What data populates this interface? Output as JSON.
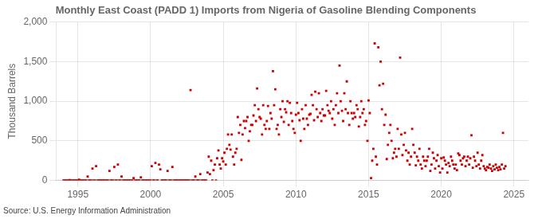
{
  "chart_data": {
    "type": "scatter",
    "title": "Monthly East Coast (PADD 1) Imports from Nigeria of Gasoline Blending Components",
    "ylabel": "Thousand Barrels",
    "source": "Source: U.S. Energy Information Administration",
    "color": "#cc0000",
    "marker": "square",
    "grid": true,
    "xlim": [
      1993.5,
      2026.0
    ],
    "ylim": [
      0,
      2000
    ],
    "xticks": [
      1995,
      2000,
      2005,
      2010,
      2015,
      2020,
      2025
    ],
    "yticks": [
      0,
      500,
      {
        "value": 1000,
        "label": "1,000"
      },
      {
        "value": 1500,
        "label": "1,500"
      },
      {
        "value": 2000,
        "label": "2,000"
      }
    ],
    "x": [
      1994.0,
      1994.08,
      1994.17,
      1994.25,
      1994.33,
      1994.42,
      1994.5,
      1994.58,
      1994.67,
      1994.75,
      1994.83,
      1994.92,
      1995.0,
      1995.08,
      1995.17,
      1995.25,
      1995.33,
      1995.42,
      1995.5,
      1995.58,
      1995.67,
      1995.75,
      1995.83,
      1995.92,
      1996.0,
      1996.08,
      1996.17,
      1996.25,
      1996.33,
      1996.42,
      1996.5,
      1996.58,
      1996.67,
      1996.75,
      1996.83,
      1996.92,
      1997.0,
      1997.08,
      1997.17,
      1997.25,
      1997.33,
      1997.42,
      1997.5,
      1997.58,
      1997.67,
      1997.75,
      1997.83,
      1997.92,
      1998.0,
      1998.08,
      1998.17,
      1998.25,
      1998.33,
      1998.42,
      1998.5,
      1998.58,
      1998.67,
      1998.75,
      1998.83,
      1998.92,
      1999.0,
      1999.08,
      1999.17,
      1999.25,
      1999.33,
      1999.42,
      1999.5,
      1999.58,
      1999.67,
      1999.75,
      1999.83,
      1999.92,
      2000.0,
      2000.08,
      2000.17,
      2000.25,
      2000.33,
      2000.42,
      2000.5,
      2000.58,
      2000.67,
      2000.75,
      2000.83,
      2000.92,
      2001.0,
      2001.08,
      2001.17,
      2001.25,
      2001.33,
      2001.42,
      2001.5,
      2001.58,
      2001.67,
      2001.75,
      2001.83,
      2001.92,
      2002.0,
      2002.08,
      2002.17,
      2002.25,
      2002.33,
      2002.42,
      2002.5,
      2002.58,
      2002.67,
      2002.75,
      2002.83,
      2002.92,
      2003.0,
      2003.08,
      2003.17,
      2003.25,
      2003.33,
      2003.42,
      2003.5,
      2003.58,
      2003.67,
      2003.75,
      2003.83,
      2003.92,
      2004.0,
      2004.08,
      2004.17,
      2004.25,
      2004.33,
      2004.42,
      2004.5,
      2004.58,
      2004.67,
      2004.75,
      2004.83,
      2004.92,
      2005.0,
      2005.08,
      2005.17,
      2005.25,
      2005.33,
      2005.42,
      2005.5,
      2005.58,
      2005.67,
      2005.75,
      2005.83,
      2005.92,
      2006.0,
      2006.08,
      2006.17,
      2006.25,
      2006.33,
      2006.42,
      2006.5,
      2006.58,
      2006.67,
      2006.75,
      2006.83,
      2006.92,
      2007.0,
      2007.08,
      2007.17,
      2007.25,
      2007.33,
      2007.42,
      2007.5,
      2007.58,
      2007.67,
      2007.75,
      2007.83,
      2007.92,
      2008.0,
      2008.08,
      2008.17,
      2008.25,
      2008.33,
      2008.42,
      2008.5,
      2008.58,
      2008.67,
      2008.75,
      2008.83,
      2008.92,
      2009.0,
      2009.08,
      2009.17,
      2009.25,
      2009.33,
      2009.42,
      2009.5,
      2009.58,
      2009.67,
      2009.75,
      2009.83,
      2009.92,
      2010.0,
      2010.08,
      2010.17,
      2010.25,
      2010.33,
      2010.42,
      2010.5,
      2010.58,
      2010.67,
      2010.75,
      2010.83,
      2010.92,
      2011.0,
      2011.08,
      2011.17,
      2011.25,
      2011.33,
      2011.42,
      2011.5,
      2011.58,
      2011.67,
      2011.75,
      2011.83,
      2011.92,
      2012.0,
      2012.08,
      2012.17,
      2012.25,
      2012.33,
      2012.42,
      2012.5,
      2012.58,
      2012.67,
      2012.75,
      2012.83,
      2012.92,
      2013.0,
      2013.08,
      2013.17,
      2013.25,
      2013.33,
      2013.42,
      2013.5,
      2013.58,
      2013.67,
      2013.75,
      2013.83,
      2013.92,
      2014.0,
      2014.08,
      2014.17,
      2014.25,
      2014.33,
      2014.42,
      2014.5,
      2014.58,
      2014.67,
      2014.75,
      2014.83,
      2014.92,
      2015.0,
      2015.08,
      2015.17,
      2015.25,
      2015.33,
      2015.42,
      2015.5,
      2015.58,
      2015.67,
      2015.75,
      2015.83,
      2015.92,
      2016.0,
      2016.08,
      2016.17,
      2016.25,
      2016.33,
      2016.42,
      2016.5,
      2016.58,
      2016.67,
      2016.75,
      2016.83,
      2016.92,
      2017.0,
      2017.08,
      2017.17,
      2017.25,
      2017.33,
      2017.42,
      2017.5,
      2017.58,
      2017.67,
      2017.75,
      2017.83,
      2017.92,
      2018.0,
      2018.08,
      2018.17,
      2018.25,
      2018.33,
      2018.42,
      2018.5,
      2018.58,
      2018.67,
      2018.75,
      2018.83,
      2018.92,
      2019.0,
      2019.08,
      2019.17,
      2019.25,
      2019.33,
      2019.42,
      2019.5,
      2019.58,
      2019.67,
      2019.75,
      2019.83,
      2019.92,
      2020.0,
      2020.08,
      2020.17,
      2020.25,
      2020.33,
      2020.42,
      2020.5,
      2020.58,
      2020.67,
      2020.75,
      2020.83,
      2020.92,
      2021.0,
      2021.08,
      2021.17,
      2021.25,
      2021.33,
      2021.42,
      2021.5,
      2021.58,
      2021.67,
      2021.75,
      2021.83,
      2021.92,
      2022.0,
      2022.08,
      2022.17,
      2022.25,
      2022.33,
      2022.42,
      2022.5,
      2022.58,
      2022.67,
      2022.75,
      2022.83,
      2022.92,
      2023.0,
      2023.08,
      2023.17,
      2023.25,
      2023.33,
      2023.42,
      2023.5,
      2023.58,
      2023.67,
      2023.75,
      2023.83,
      2023.92,
      2024.0,
      2024.08,
      2024.17,
      2024.25,
      2024.33,
      2024.42
    ],
    "values": [
      0,
      0,
      0,
      0,
      0,
      5,
      0,
      0,
      0,
      0,
      0,
      0,
      0,
      10,
      0,
      0,
      0,
      0,
      0,
      0,
      50,
      0,
      0,
      0,
      150,
      0,
      0,
      180,
      0,
      0,
      0,
      0,
      0,
      0,
      0,
      0,
      0,
      0,
      120,
      0,
      0,
      0,
      170,
      0,
      0,
      200,
      0,
      0,
      50,
      0,
      0,
      0,
      0,
      0,
      0,
      0,
      0,
      0,
      30,
      0,
      0,
      0,
      0,
      0,
      40,
      0,
      0,
      0,
      0,
      0,
      0,
      0,
      0,
      180,
      0,
      0,
      220,
      0,
      0,
      200,
      140,
      0,
      0,
      0,
      0,
      0,
      120,
      0,
      0,
      0,
      170,
      0,
      0,
      0,
      0,
      0,
      0,
      0,
      0,
      0,
      0,
      0,
      0,
      0,
      0,
      1140,
      0,
      0,
      0,
      50,
      0,
      0,
      0,
      80,
      0,
      0,
      0,
      0,
      0,
      100,
      300,
      80,
      250,
      0,
      130,
      200,
      0,
      280,
      380,
      200,
      150,
      280,
      240,
      350,
      200,
      400,
      580,
      450,
      390,
      580,
      300,
      200,
      350,
      400,
      800,
      600,
      700,
      260,
      580,
      750,
      660,
      750,
      800,
      500,
      620,
      700,
      700,
      820,
      950,
      750,
      1160,
      900,
      800,
      780,
      580,
      950,
      700,
      650,
      750,
      940,
      650,
      850,
      780,
      1380,
      950,
      1150,
      650,
      700,
      580,
      900,
      800,
      1000,
      740,
      900,
      860,
      1000,
      700,
      980,
      850,
      750,
      650,
      600,
      830,
      980,
      850,
      760,
      500,
      900,
      780,
      650,
      950,
      780,
      700,
      830,
      840,
      1080,
      950,
      760,
      1120,
      900,
      800,
      1100,
      850,
      750,
      900,
      820,
      820,
      1130,
      950,
      880,
      850,
      1000,
      780,
      900,
      700,
      950,
      1100,
      850,
      1450,
      1000,
      880,
      750,
      1100,
      900,
      1250,
      850,
      700,
      1000,
      850,
      780,
      850,
      800,
      950,
      900,
      680,
      800,
      1000,
      850,
      900,
      700,
      750,
      500,
      1010,
      850,
      30,
      250,
      400,
      1730,
      300,
      200,
      1680,
      1200,
      1500,
      900,
      1220,
      700,
      830,
      270,
      450,
      600,
      700,
      500,
      280,
      350,
      400,
      300,
      650,
      400,
      1550,
      580,
      320,
      450,
      600,
      380,
      250,
      350,
      200,
      300,
      650,
      450,
      350,
      190,
      300,
      250,
      400,
      200,
      150,
      300,
      250,
      180,
      250,
      300,
      400,
      120,
      200,
      350,
      280,
      150,
      250,
      320,
      180,
      100,
      280,
      150,
      290,
      250,
      200,
      100,
      220,
      180,
      300,
      250,
      200,
      150,
      200,
      130,
      340,
      320,
      250,
      200,
      280,
      300,
      180,
      250,
      300,
      200,
      280,
      570,
      160,
      300,
      250,
      180,
      350,
      200,
      150,
      250,
      320,
      180,
      150,
      130,
      170,
      160,
      200,
      150,
      120,
      180,
      140,
      200,
      160,
      130,
      170,
      140,
      200,
      600,
      150,
      180
    ]
  }
}
